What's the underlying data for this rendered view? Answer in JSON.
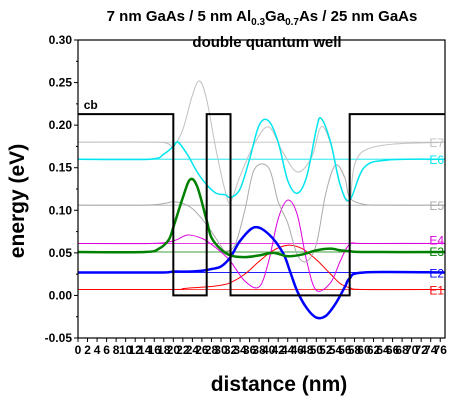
{
  "chart_data": {
    "type": "line",
    "title": {
      "line1_prefix": "7 nm GaAs / 5 nm Al",
      "line1_sub1": "0.3",
      "line1_mid": "Ga",
      "line1_sub2": "0.7",
      "line1_suffix": "As / 25 nm GaAs",
      "line2": "double quantum well"
    },
    "xlabel": "distance (nm)",
    "ylabel": "energy (eV)",
    "xlim": [
      0,
      77
    ],
    "ylim": [
      -0.05,
      0.3
    ],
    "xticks": [
      "0",
      "2",
      "4",
      "6",
      "8",
      "10",
      "12",
      "14",
      "16",
      "18",
      "20",
      "22",
      "24",
      "26",
      "28",
      "30",
      "32",
      "34",
      "36",
      "38",
      "40",
      "42",
      "44",
      "46",
      "48",
      "50",
      "52",
      "54",
      "56",
      "58",
      "60",
      "62",
      "64",
      "66",
      "68",
      "70",
      "72",
      "74",
      "76"
    ],
    "yticks": [
      "-0.05",
      "0.00",
      "0.05",
      "0.10",
      "0.15",
      "0.20",
      "0.25",
      "0.30"
    ],
    "conduction_band": {
      "name": "cb",
      "color": "#000000",
      "x": [
        0,
        20,
        20,
        27,
        27,
        32,
        32,
        57,
        57,
        77
      ],
      "y": [
        0.213,
        0.213,
        0,
        0,
        0.213,
        0.213,
        0,
        0,
        0.213,
        0.213
      ]
    },
    "levels": [
      {
        "name": "E1",
        "energy": 0.007,
        "color": "#ff0000"
      },
      {
        "name": "E2",
        "energy": 0.027,
        "color": "#0000ff"
      },
      {
        "name": "E3",
        "energy": 0.051,
        "color": "#008000"
      },
      {
        "name": "E4",
        "energy": 0.061,
        "color": "#dd00dd"
      },
      {
        "name": "E5",
        "energy": 0.106,
        "color": "#aaaaaa"
      },
      {
        "name": "E6",
        "energy": 0.16,
        "color": "#00e5ee"
      },
      {
        "name": "E7",
        "energy": 0.18,
        "color": "#c0c0c0"
      }
    ],
    "wavefunctions": [
      {
        "name": "E1",
        "color": "#ff0000",
        "width": 1,
        "x": [
          0,
          20,
          22,
          24,
          27,
          30,
          32,
          35,
          38,
          41,
          44,
          47,
          50,
          53,
          55,
          57,
          60,
          77
        ],
        "y": [
          0.007,
          0.007,
          0.008,
          0.009,
          0.01,
          0.012,
          0.015,
          0.025,
          0.04,
          0.053,
          0.059,
          0.055,
          0.042,
          0.025,
          0.014,
          0.009,
          0.007,
          0.007
        ]
      },
      {
        "name": "E2",
        "color": "#0000ff",
        "width": 2.5,
        "x": [
          0,
          10,
          18,
          20,
          23,
          26,
          28,
          30,
          32,
          34,
          37,
          40,
          43,
          44.5,
          46,
          48,
          50,
          52,
          54,
          56,
          57,
          60,
          77
        ],
        "y": [
          0.027,
          0.027,
          0.027,
          0.028,
          0.028,
          0.029,
          0.031,
          0.034,
          0.045,
          0.064,
          0.08,
          0.072,
          0.05,
          0.028,
          0.005,
          -0.015,
          -0.026,
          -0.024,
          -0.01,
          0.01,
          0.02,
          0.027,
          0.027
        ]
      },
      {
        "name": "E3",
        "color": "#008000",
        "width": 2.5,
        "x": [
          0,
          14,
          17,
          19,
          20,
          22,
          23.5,
          25,
          27,
          28,
          30,
          32,
          35,
          38,
          41,
          44,
          47,
          50,
          53,
          55,
          57,
          60,
          77
        ],
        "y": [
          0.051,
          0.051,
          0.055,
          0.065,
          0.08,
          0.115,
          0.136,
          0.128,
          0.088,
          0.068,
          0.054,
          0.047,
          0.045,
          0.047,
          0.05,
          0.046,
          0.048,
          0.053,
          0.055,
          0.053,
          0.052,
          0.051,
          0.051
        ]
      },
      {
        "name": "E4",
        "color": "#dd00dd",
        "width": 1,
        "x": [
          0,
          15,
          20,
          23,
          26,
          28,
          30,
          32,
          35,
          38,
          40,
          42,
          44,
          46,
          48,
          50,
          53,
          55,
          57,
          60,
          77
        ],
        "y": [
          0.061,
          0.061,
          0.064,
          0.071,
          0.067,
          0.06,
          0.051,
          0.04,
          0.017,
          0.01,
          0.04,
          0.09,
          0.112,
          0.095,
          0.04,
          0.006,
          0.015,
          0.04,
          0.06,
          0.061,
          0.061
        ]
      },
      {
        "name": "E5",
        "color": "#aaaaaa",
        "width": 1,
        "x": [
          0,
          14,
          18,
          20,
          22,
          24,
          26,
          28,
          30,
          31,
          33,
          35,
          37,
          40,
          42,
          44,
          46,
          48,
          50,
          52,
          54,
          56,
          57,
          60,
          65,
          77
        ],
        "y": [
          0.106,
          0.106,
          0.108,
          0.11,
          0.108,
          0.102,
          0.09,
          0.075,
          0.058,
          0.052,
          0.06,
          0.1,
          0.148,
          0.15,
          0.11,
          0.085,
          0.048,
          0.04,
          0.06,
          0.12,
          0.153,
          0.138,
          0.115,
          0.107,
          0.106,
          0.106
        ]
      },
      {
        "name": "E6",
        "color": "#00e5ee",
        "width": 1.5,
        "x": [
          0,
          15,
          18,
          20,
          21,
          23,
          25,
          27,
          29,
          31,
          32,
          34,
          36,
          38,
          40,
          42,
          44,
          46,
          48,
          50,
          51,
          53,
          55,
          57,
          60,
          65,
          77
        ],
        "y": [
          0.16,
          0.16,
          0.166,
          0.175,
          0.18,
          0.165,
          0.145,
          0.13,
          0.12,
          0.118,
          0.115,
          0.125,
          0.16,
          0.2,
          0.205,
          0.18,
          0.135,
          0.12,
          0.14,
          0.195,
          0.208,
          0.18,
          0.13,
          0.112,
          0.15,
          0.159,
          0.16
        ]
      },
      {
        "name": "E7",
        "color": "#c0c0c0",
        "width": 1,
        "x": [
          0,
          16,
          19,
          20,
          22,
          24,
          25.5,
          27,
          29,
          31,
          32,
          34,
          37,
          40,
          43,
          46,
          49,
          51,
          53,
          55,
          57,
          60,
          77
        ],
        "y": [
          0.18,
          0.18,
          0.178,
          0.175,
          0.195,
          0.235,
          0.252,
          0.23,
          0.17,
          0.12,
          0.11,
          0.14,
          0.178,
          0.198,
          0.168,
          0.145,
          0.162,
          0.198,
          0.178,
          0.13,
          0.112,
          0.17,
          0.18
        ]
      }
    ]
  }
}
